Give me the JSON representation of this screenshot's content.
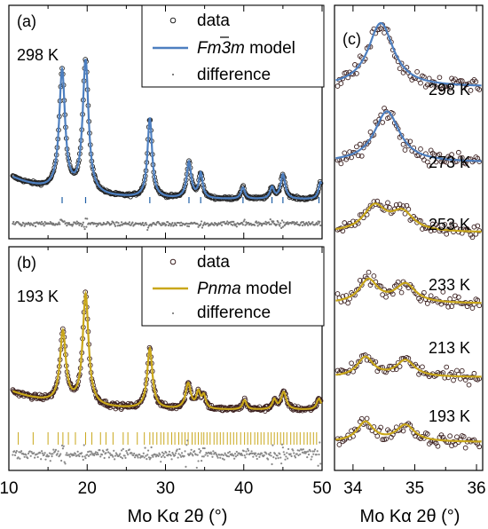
{
  "chart_data": [
    {
      "id": "a",
      "type": "line",
      "panel_label": "(a)",
      "temperature_label": "298 K",
      "xlim": [
        10,
        50
      ],
      "ylim": [
        0,
        1
      ],
      "legend": {
        "placement": "top-right",
        "entries": [
          {
            "label": "data",
            "symbol": "open-circle"
          },
          {
            "label_main": "Fm",
            "label_over": "3",
            "label_tail": "m",
            "label_suffix": " model",
            "symbol": "line"
          },
          {
            "label": "difference",
            "symbol": "dot"
          }
        ]
      },
      "background": 0.28,
      "peaks": [
        {
          "x": 16.8,
          "height": 0.63,
          "width": 0.45
        },
        {
          "x": 19.8,
          "height": 0.7,
          "width": 0.45
        },
        {
          "x": 28.0,
          "height": 0.42,
          "width": 0.35
        },
        {
          "x": 33.0,
          "height": 0.19,
          "width": 0.35
        },
        {
          "x": 34.5,
          "height": 0.13,
          "width": 0.3
        },
        {
          "x": 39.9,
          "height": 0.06,
          "width": 0.3
        },
        {
          "x": 43.6,
          "height": 0.06,
          "width": 0.3
        },
        {
          "x": 45.0,
          "height": 0.13,
          "width": 0.35
        },
        {
          "x": 49.8,
          "height": 0.09,
          "width": 0.3
        }
      ],
      "reflections": [
        16.8,
        19.8,
        28.0,
        33.0,
        34.5,
        39.9,
        43.6,
        45.0,
        49.6
      ],
      "colors": {
        "data": "#222222",
        "model": "#4d7fc0",
        "ticks": "#1f5fa6",
        "difference": "#777777"
      }
    },
    {
      "id": "b",
      "type": "line",
      "panel_label": "(b)",
      "temperature_label": "193 K",
      "xlim": [
        10,
        50
      ],
      "ylim": [
        0,
        1
      ],
      "legend": {
        "placement": "top-right",
        "entries": [
          {
            "label": "data",
            "symbol": "open-circle"
          },
          {
            "label_main": "Pnma",
            "label_suffix": " model",
            "symbol": "line"
          },
          {
            "label": "difference",
            "symbol": "dot"
          }
        ]
      },
      "background": 0.28,
      "peaks": [
        {
          "x": 16.9,
          "height": 0.45,
          "width": 0.45
        },
        {
          "x": 19.8,
          "height": 0.7,
          "width": 0.45
        },
        {
          "x": 28.0,
          "height": 0.38,
          "width": 0.4
        },
        {
          "x": 32.9,
          "height": 0.16,
          "width": 0.4
        },
        {
          "x": 34.2,
          "height": 0.1,
          "width": 0.3
        },
        {
          "x": 34.9,
          "height": 0.08,
          "width": 0.3
        },
        {
          "x": 40.1,
          "height": 0.06,
          "width": 0.3
        },
        {
          "x": 43.9,
          "height": 0.06,
          "width": 0.3
        },
        {
          "x": 45.1,
          "height": 0.11,
          "width": 0.4
        },
        {
          "x": 49.6,
          "height": 0.07,
          "width": 0.35
        }
      ],
      "reflections": [
        11.2,
        13.1,
        15.0,
        16.3,
        16.9,
        17.6,
        18.5,
        19.8,
        20.6,
        21.7,
        22.4,
        23.3,
        24.6,
        25.2,
        26.4,
        27.3,
        28.0,
        28.4,
        28.9,
        29.4,
        29.8,
        30.3,
        30.8,
        31.2,
        31.7,
        32.1,
        32.5,
        32.9,
        33.4,
        33.8,
        34.2,
        34.6,
        34.9,
        35.3,
        35.7,
        36.2,
        36.6,
        37.0,
        37.4,
        37.9,
        38.3,
        38.7,
        39.1,
        39.6,
        40.1,
        40.5,
        40.9,
        41.4,
        41.8,
        42.2,
        42.6,
        43.1,
        43.5,
        43.9,
        44.3,
        44.7,
        45.1,
        45.5,
        46.0,
        46.4,
        46.8,
        47.2,
        47.7,
        48.1,
        48.5,
        48.9,
        49.3
      ],
      "colors": {
        "data": "#3a1f1f",
        "model": "#c9a71a",
        "ticks": "#c9a71a",
        "difference": "#888888"
      }
    },
    {
      "id": "c",
      "type": "line",
      "panel_label": "(c)",
      "xlim": [
        33.7,
        36.1
      ],
      "xticks": [
        34,
        35,
        36
      ],
      "xtick_labels": [
        "34",
        "35",
        "36"
      ],
      "traces": [
        {
          "label": "298 K",
          "model": "cubic",
          "peaks": [
            {
              "x": 34.45,
              "height": 1.0,
              "width": 0.25
            }
          ],
          "color": "#4d7fc0"
        },
        {
          "label": "273 K",
          "model": "cubic",
          "peaks": [
            {
              "x": 34.55,
              "height": 0.8,
              "width": 0.25
            }
          ],
          "color": "#4d7fc0"
        },
        {
          "label": "253 K",
          "model": "orthorhombic",
          "peaks": [
            {
              "x": 34.35,
              "height": 0.46,
              "width": 0.22
            },
            {
              "x": 34.8,
              "height": 0.34,
              "width": 0.22
            }
          ],
          "color": "#c9a71a"
        },
        {
          "label": "233 K",
          "model": "orthorhombic",
          "peaks": [
            {
              "x": 34.25,
              "height": 0.42,
              "width": 0.18
            },
            {
              "x": 34.85,
              "height": 0.34,
              "width": 0.2
            }
          ],
          "color": "#c9a71a"
        },
        {
          "label": "213 K",
          "model": "orthorhombic",
          "peaks": [
            {
              "x": 34.2,
              "height": 0.38,
              "width": 0.16
            },
            {
              "x": 34.85,
              "height": 0.32,
              "width": 0.18
            }
          ],
          "color": "#c9a71a"
        },
        {
          "label": "193 K",
          "model": "orthorhombic",
          "peaks": [
            {
              "x": 34.2,
              "height": 0.38,
              "width": 0.16
            },
            {
              "x": 34.85,
              "height": 0.32,
              "width": 0.18
            }
          ],
          "color": "#c9a71a"
        }
      ]
    }
  ],
  "axes": {
    "left_xticks": [
      10,
      20,
      30,
      40,
      50
    ],
    "left_xtick_labels": [
      "10",
      "20",
      "30",
      "40",
      "50"
    ],
    "xlabel_main": "Mo K",
    "xlabel_alpha": "α",
    "xlabel_rest": " 2θ (°)"
  }
}
